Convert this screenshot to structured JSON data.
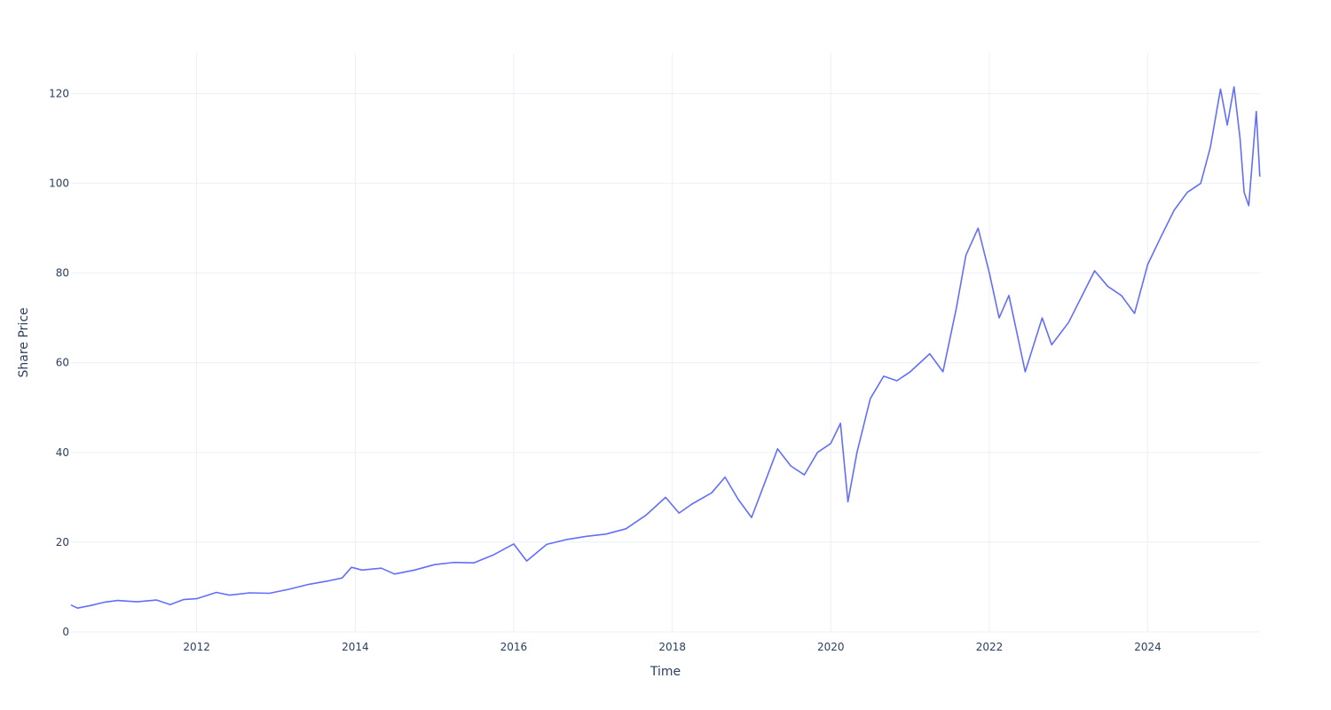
{
  "chart_data": {
    "type": "line",
    "title": "",
    "xlabel": "Time",
    "ylabel": "Share Price",
    "xlim": [
      "2010-06-01",
      "2025-06-01"
    ],
    "ylim": [
      0,
      129
    ],
    "x_ticks": [
      {
        "label": "2012",
        "date": "2012-01-01"
      },
      {
        "label": "2014",
        "date": "2014-01-01"
      },
      {
        "label": "2016",
        "date": "2016-01-01"
      },
      {
        "label": "2018",
        "date": "2018-01-01"
      },
      {
        "label": "2020",
        "date": "2020-01-01"
      },
      {
        "label": "2022",
        "date": "2022-01-01"
      },
      {
        "label": "2024",
        "date": "2024-01-01"
      }
    ],
    "y_ticks": [
      0,
      20,
      40,
      60,
      80,
      100,
      120
    ],
    "grid": true,
    "legend": "none",
    "line_color": "#636efa",
    "grid_color": "#ebf0f8",
    "series": [
      {
        "name": "",
        "points": [
          [
            "2010-06-01",
            6.0
          ],
          [
            "2010-07-01",
            5.3
          ],
          [
            "2010-09-01",
            5.9
          ],
          [
            "2010-11-01",
            6.6
          ],
          [
            "2011-01-01",
            7.0
          ],
          [
            "2011-04-01",
            6.7
          ],
          [
            "2011-07-01",
            7.1
          ],
          [
            "2011-09-01",
            6.1
          ],
          [
            "2011-11-01",
            7.2
          ],
          [
            "2012-01-01",
            7.4
          ],
          [
            "2012-04-01",
            8.8
          ],
          [
            "2012-06-01",
            8.2
          ],
          [
            "2012-09-01",
            8.7
          ],
          [
            "2012-12-01",
            8.6
          ],
          [
            "2013-03-01",
            9.5
          ],
          [
            "2013-06-01",
            10.6
          ],
          [
            "2013-09-01",
            11.4
          ],
          [
            "2013-11-01",
            12.0
          ],
          [
            "2013-12-15",
            14.4
          ],
          [
            "2014-02-01",
            13.8
          ],
          [
            "2014-05-01",
            14.2
          ],
          [
            "2014-07-01",
            12.9
          ],
          [
            "2014-10-01",
            13.8
          ],
          [
            "2015-01-01",
            15.0
          ],
          [
            "2015-04-01",
            15.5
          ],
          [
            "2015-07-01",
            15.4
          ],
          [
            "2015-10-01",
            17.2
          ],
          [
            "2016-01-01",
            19.6
          ],
          [
            "2016-03-01",
            15.8
          ],
          [
            "2016-06-01",
            19.5
          ],
          [
            "2016-09-01",
            20.6
          ],
          [
            "2016-12-01",
            21.3
          ],
          [
            "2017-03-01",
            21.8
          ],
          [
            "2017-06-01",
            23.0
          ],
          [
            "2017-09-01",
            26.0
          ],
          [
            "2017-12-01",
            30.0
          ],
          [
            "2018-02-01",
            26.5
          ],
          [
            "2018-04-01",
            28.5
          ],
          [
            "2018-07-01",
            31.0
          ],
          [
            "2018-09-01",
            34.5
          ],
          [
            "2018-11-01",
            29.5
          ],
          [
            "2019-01-01",
            25.5
          ],
          [
            "2019-03-01",
            33.0
          ],
          [
            "2019-05-01",
            40.8
          ],
          [
            "2019-07-01",
            37.0
          ],
          [
            "2019-09-01",
            35.0
          ],
          [
            "2019-11-01",
            40.0
          ],
          [
            "2020-01-01",
            42.0
          ],
          [
            "2020-02-15",
            46.5
          ],
          [
            "2020-03-20",
            29.0
          ],
          [
            "2020-05-01",
            40.0
          ],
          [
            "2020-07-01",
            52.0
          ],
          [
            "2020-09-01",
            57.0
          ],
          [
            "2020-11-01",
            56.0
          ],
          [
            "2021-01-01",
            58.0
          ],
          [
            "2021-04-01",
            62.0
          ],
          [
            "2021-06-01",
            58.0
          ],
          [
            "2021-08-01",
            72.0
          ],
          [
            "2021-09-15",
            84.0
          ],
          [
            "2021-11-10",
            90.0
          ],
          [
            "2022-01-01",
            80.0
          ],
          [
            "2022-02-15",
            70.0
          ],
          [
            "2022-04-01",
            75.0
          ],
          [
            "2022-06-15",
            58.0
          ],
          [
            "2022-09-01",
            70.0
          ],
          [
            "2022-10-15",
            64.0
          ],
          [
            "2023-01-01",
            69.0
          ],
          [
            "2023-05-01",
            80.5
          ],
          [
            "2023-07-01",
            77.0
          ],
          [
            "2023-09-01",
            75.0
          ],
          [
            "2023-11-01",
            71.0
          ],
          [
            "2024-01-01",
            82.0
          ],
          [
            "2024-03-01",
            88.0
          ],
          [
            "2024-05-01",
            94.0
          ],
          [
            "2024-07-01",
            98.0
          ],
          [
            "2024-09-01",
            100.0
          ],
          [
            "2024-10-15",
            108.0
          ],
          [
            "2024-12-01",
            121.0
          ],
          [
            "2025-01-01",
            113.0
          ],
          [
            "2025-02-01",
            121.5
          ],
          [
            "2025-03-01",
            110.0
          ],
          [
            "2025-03-20",
            98.0
          ],
          [
            "2025-04-10",
            95.0
          ],
          [
            "2025-05-15",
            116.0
          ],
          [
            "2025-05-31",
            101.5
          ]
        ]
      }
    ]
  }
}
